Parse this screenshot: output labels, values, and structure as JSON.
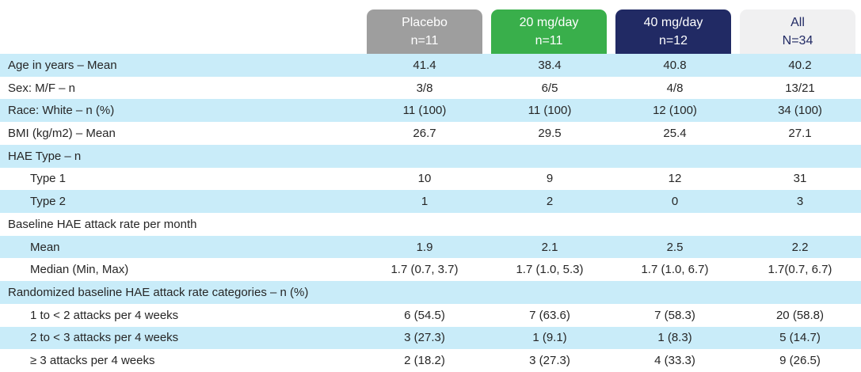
{
  "chart_data": {
    "type": "table",
    "columns": [
      {
        "title": "Placebo",
        "subtitle": "n=11",
        "bg": "#9e9e9e",
        "fg": "#ffffff"
      },
      {
        "title": "20 mg/day",
        "subtitle": "n=11",
        "bg": "#39af4b",
        "fg": "#ffffff"
      },
      {
        "title": "40 mg/day",
        "subtitle": "n=12",
        "bg": "#212a64",
        "fg": "#ffffff"
      },
      {
        "title": "All",
        "subtitle": "N=34",
        "bg": "#f0f0f1",
        "fg": "#212a64"
      }
    ],
    "rows": [
      {
        "label": "Age in years – Mean",
        "indent": false,
        "values": [
          "41.4",
          "38.4",
          "40.8",
          "40.2"
        ]
      },
      {
        "label": "Sex: M/F – n",
        "indent": false,
        "values": [
          "3/8",
          "6/5",
          "4/8",
          "13/21"
        ]
      },
      {
        "label": "Race: White – n (%)",
        "indent": false,
        "values": [
          "11 (100)",
          "11 (100)",
          "12 (100)",
          "34 (100)"
        ]
      },
      {
        "label": "BMI (kg/m2) – Mean",
        "indent": false,
        "values": [
          "26.7",
          "29.5",
          "25.4",
          "27.1"
        ]
      },
      {
        "label": "HAE Type – n",
        "indent": false,
        "values": [
          "",
          "",
          "",
          ""
        ]
      },
      {
        "label": "Type 1",
        "indent": true,
        "values": [
          "10",
          "9",
          "12",
          "31"
        ]
      },
      {
        "label": "Type 2",
        "indent": true,
        "values": [
          "1",
          "2",
          "0",
          "3"
        ]
      },
      {
        "label": "Baseline HAE attack rate per month",
        "indent": false,
        "values": [
          "",
          "",
          "",
          ""
        ]
      },
      {
        "label": "Mean",
        "indent": true,
        "values": [
          "1.9",
          "2.1",
          "2.5",
          "2.2"
        ]
      },
      {
        "label": "Median (Min, Max)",
        "indent": true,
        "values": [
          "1.7 (0.7, 3.7)",
          "1.7 (1.0, 5.3)",
          "1.7 (1.0, 6.7)",
          "1.7(0.7, 6.7)"
        ]
      },
      {
        "label": "Randomized baseline HAE attack rate categories – n (%)",
        "indent": false,
        "values": [
          "",
          "",
          "",
          ""
        ]
      },
      {
        "label": "1 to < 2 attacks per 4 weeks",
        "indent": true,
        "values": [
          "6 (54.5)",
          "7 (63.6)",
          "7 (58.3)",
          "20 (58.8)"
        ]
      },
      {
        "label": "2 to < 3 attacks per 4 weeks",
        "indent": true,
        "values": [
          "3 (27.3)",
          "1 (9.1)",
          "1 (8.3)",
          "5 (14.7)"
        ]
      },
      {
        "label": "≥ 3 attacks per 4 weeks",
        "indent": true,
        "values": [
          "2 (18.2)",
          "3 (27.3)",
          "4 (33.3)",
          "9 (26.5)"
        ]
      }
    ]
  },
  "colors": {
    "stripe_blue": "#c9ecf9",
    "body_text": "#262626",
    "background": "#ffffff"
  }
}
